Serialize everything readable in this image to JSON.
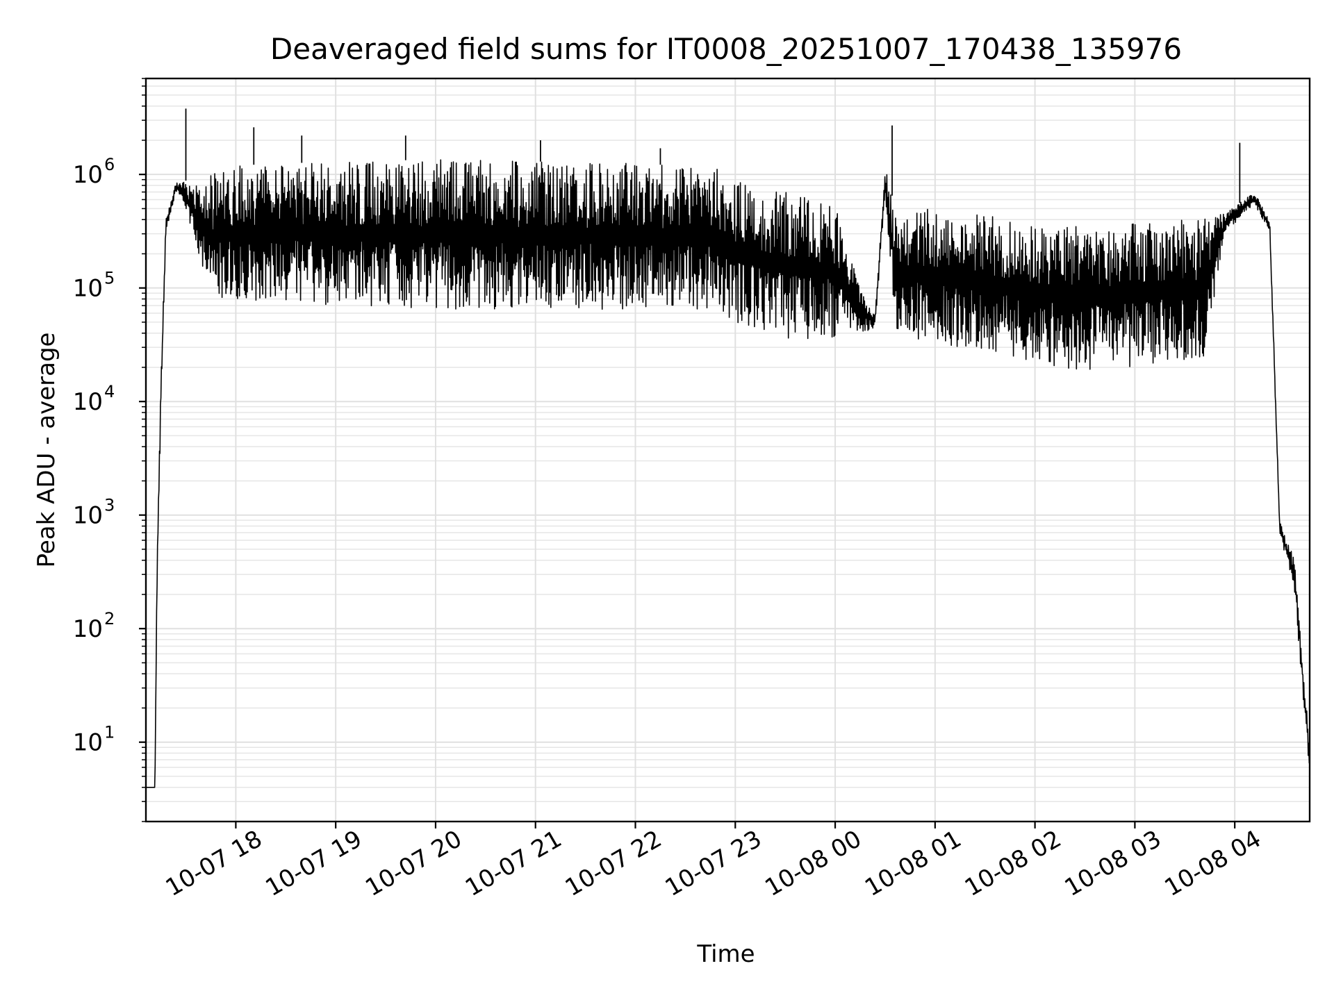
{
  "chart_data": {
    "type": "line",
    "title": "Deaveraged field sums for IT0008_20251007_170438_135976",
    "xlabel": "Time",
    "ylabel": "Peak ADU - average",
    "yscale": "log",
    "ylim": [
      2,
      7000000
    ],
    "y_ticks": [
      {
        "base": "10",
        "exp": "1",
        "value": 10
      },
      {
        "base": "10",
        "exp": "2",
        "value": 100
      },
      {
        "base": "10",
        "exp": "3",
        "value": 1000
      },
      {
        "base": "10",
        "exp": "4",
        "value": 10000
      },
      {
        "base": "10",
        "exp": "5",
        "value": 100000
      },
      {
        "base": "10",
        "exp": "6",
        "value": 1000000
      }
    ],
    "xlim_hours": [
      17.1,
      28.75
    ],
    "x_ticks": [
      {
        "label": "10-07 18",
        "hour": 18
      },
      {
        "label": "10-07 19",
        "hour": 19
      },
      {
        "label": "10-07 20",
        "hour": 20
      },
      {
        "label": "10-07 21",
        "hour": 21
      },
      {
        "label": "10-07 22",
        "hour": 22
      },
      {
        "label": "10-07 23",
        "hour": 23
      },
      {
        "label": "10-08 00",
        "hour": 24
      },
      {
        "label": "10-08 01",
        "hour": 25
      },
      {
        "label": "10-08 02",
        "hour": 26
      },
      {
        "label": "10-08 03",
        "hour": 27
      },
      {
        "label": "10-08 04",
        "hour": 28
      }
    ],
    "grid": true,
    "series": [
      {
        "name": "Peak ADU - average",
        "color": "#000000",
        "envelope": [
          {
            "hour": 17.1,
            "upper": 4,
            "lower": 4
          },
          {
            "hour": 17.19,
            "upper": 4,
            "lower": 4
          },
          {
            "hour": 17.21,
            "upper": 300,
            "lower": 200
          },
          {
            "hour": 17.25,
            "upper": 15000,
            "lower": 8000
          },
          {
            "hour": 17.3,
            "upper": 400000,
            "lower": 300000
          },
          {
            "hour": 17.4,
            "upper": 850000,
            "lower": 700000
          },
          {
            "hour": 17.48,
            "upper": 900000,
            "lower": 500000
          },
          {
            "hour": 17.6,
            "upper": 800000,
            "lower": 250000
          },
          {
            "hour": 17.75,
            "upper": 1000000,
            "lower": 80000
          },
          {
            "hour": 18.0,
            "upper": 1200000,
            "lower": 80000
          },
          {
            "hour": 19.0,
            "upper": 1300000,
            "lower": 70000
          },
          {
            "hour": 20.0,
            "upper": 1350000,
            "lower": 65000
          },
          {
            "hour": 21.0,
            "upper": 1300000,
            "lower": 65000
          },
          {
            "hour": 22.0,
            "upper": 1250000,
            "lower": 65000
          },
          {
            "hour": 22.8,
            "upper": 1150000,
            "lower": 65000
          },
          {
            "hour": 23.0,
            "upper": 900000,
            "lower": 50000
          },
          {
            "hour": 23.5,
            "upper": 700000,
            "lower": 35000
          },
          {
            "hour": 24.0,
            "upper": 550000,
            "lower": 35000
          },
          {
            "hour": 24.3,
            "upper": 80000,
            "lower": 40000
          },
          {
            "hour": 24.4,
            "upper": 60000,
            "lower": 45000
          },
          {
            "hour": 24.5,
            "upper": 1200000,
            "lower": 700000
          },
          {
            "hour": 24.6,
            "upper": 500000,
            "lower": 40000
          },
          {
            "hour": 25.0,
            "upper": 500000,
            "lower": 32000
          },
          {
            "hour": 25.5,
            "upper": 450000,
            "lower": 28000
          },
          {
            "hour": 26.0,
            "upper": 350000,
            "lower": 22000
          },
          {
            "hour": 26.5,
            "upper": 380000,
            "lower": 18000
          },
          {
            "hour": 27.0,
            "upper": 380000,
            "lower": 20000
          },
          {
            "hour": 27.7,
            "upper": 420000,
            "lower": 25000
          },
          {
            "hour": 27.9,
            "upper": 450000,
            "lower": 300000
          },
          {
            "hour": 28.2,
            "upper": 700000,
            "lower": 550000
          },
          {
            "hour": 28.35,
            "upper": 400000,
            "lower": 300000
          },
          {
            "hour": 28.45,
            "upper": 900,
            "lower": 700
          },
          {
            "hour": 28.6,
            "upper": 400,
            "lower": 200
          },
          {
            "hour": 28.75,
            "upper": 10,
            "lower": 5
          }
        ],
        "spikes": [
          {
            "hour": 17.5,
            "value": 3800000
          },
          {
            "hour": 18.18,
            "value": 2600000
          },
          {
            "hour": 18.66,
            "value": 2200000
          },
          {
            "hour": 19.7,
            "value": 2200000
          },
          {
            "hour": 21.05,
            "value": 2000000
          },
          {
            "hour": 22.25,
            "value": 1700000
          },
          {
            "hour": 24.57,
            "value": 2700000
          },
          {
            "hour": 28.05,
            "value": 1900000
          }
        ]
      }
    ]
  }
}
